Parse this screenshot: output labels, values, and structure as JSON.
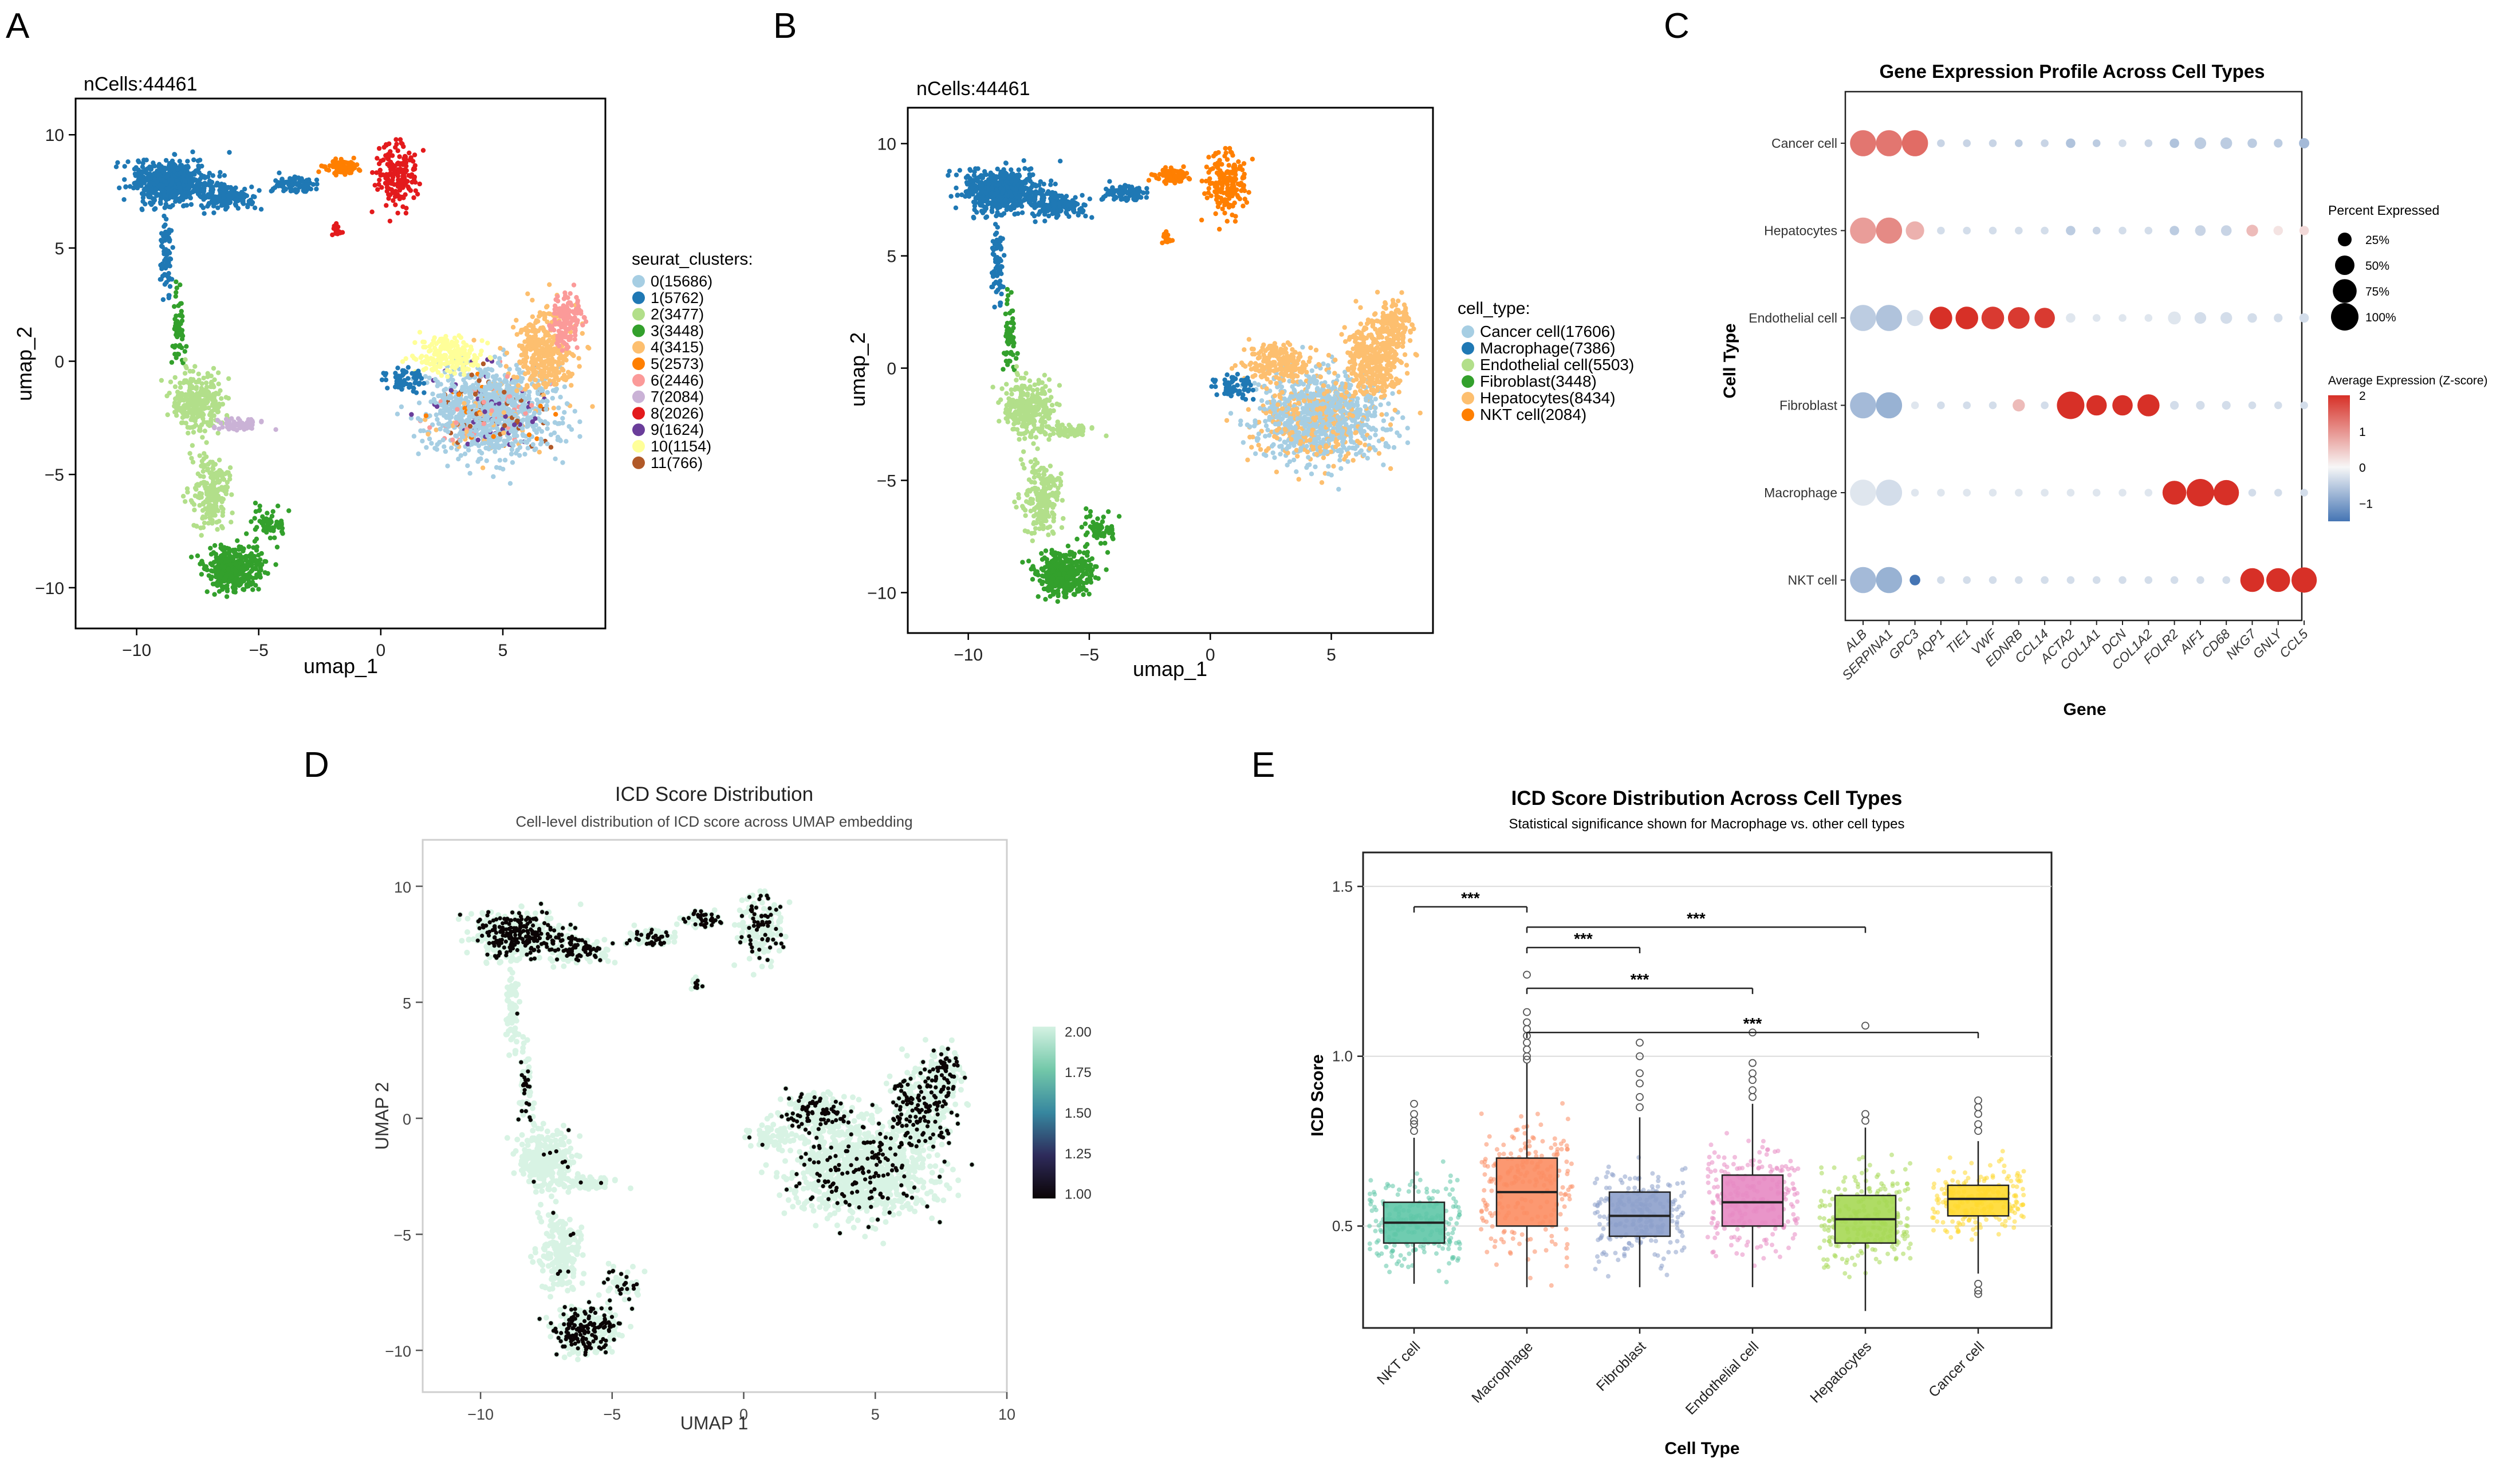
{
  "panels": {
    "A": "A",
    "B": "B",
    "C": "C",
    "D": "D",
    "E": "E"
  },
  "colors": {
    "clusters": [
      "#a6cee3",
      "#1f78b4",
      "#b2df8a",
      "#33a02c",
      "#fdbf6f",
      "#ff7f00",
      "#fb9a99",
      "#cab2d6",
      "#e31a1c",
      "#6a3d9a",
      "#ffff99",
      "#b15928"
    ],
    "cell_types": [
      "#a6cee3",
      "#1f78b4",
      "#b2df8a",
      "#33a02c",
      "#fdbf6f",
      "#ff7f00"
    ],
    "box_fill": [
      "#5fc7a7",
      "#fc8d62",
      "#8da0cb",
      "#e78ac3",
      "#a6d854",
      "#ffd92f"
    ],
    "dot_high": "#d73027",
    "dot_mid": "#f7f7f7",
    "dot_low": "#4575b4",
    "icd_scale": [
      "#d5f2e3",
      "#73c8a9",
      "#37879f",
      "#2e2b5b",
      "#0b0405"
    ]
  },
  "chart_data": [
    {
      "id": "A",
      "type": "scatter",
      "title": "nCells:44461",
      "xlabel": "umap_1",
      "ylabel": "umap_2",
      "xlim": [
        -12.5,
        9.2
      ],
      "ylim": [
        -11.8,
        11.6
      ],
      "xticks": [
        -10,
        -5,
        0,
        5
      ],
      "yticks": [
        -10,
        -5,
        0,
        5,
        10
      ],
      "legend_title": "seurat_clusters:",
      "legend": [
        "0(15686)",
        "1(5762)",
        "2(3477)",
        "3(3448)",
        "4(3415)",
        "5(2573)",
        "6(2446)",
        "7(2084)",
        "8(2026)",
        "9(1624)",
        "10(1154)",
        "11(766)"
      ]
    },
    {
      "id": "B",
      "type": "scatter",
      "title": "nCells:44461",
      "xlabel": "umap_1",
      "ylabel": "umap_2",
      "xlim": [
        -12.5,
        9.2
      ],
      "ylim": [
        -11.8,
        11.6
      ],
      "xticks": [
        -10,
        -5,
        0,
        5
      ],
      "yticks": [
        -10,
        -5,
        0,
        5,
        10
      ],
      "legend_title": "cell_type:",
      "legend": [
        "Cancer cell(17606)",
        "Macrophage(7386)",
        "Endothelial cell(5503)",
        "Fibroblast(3448)",
        "Hepatocytes(8434)",
        "NKT cell(2084)"
      ]
    },
    {
      "id": "C",
      "type": "dotplot",
      "title": "Gene Expression Profile Across Cell Types",
      "xlabel": "Gene",
      "ylabel": "Cell Type",
      "genes": [
        "ALB",
        "SERPINA1",
        "GPC3",
        "AQP1",
        "TIE1",
        "VWF",
        "EDNRB",
        "CCL14",
        "ACTA2",
        "COL1A1",
        "DCN",
        "COL1A2",
        "FOLR2",
        "AIF1",
        "CD68",
        "NKG7",
        "GNLY",
        "CCL5"
      ],
      "cell_types": [
        "Cancer cell",
        "Hepatocytes",
        "Endothelial cell",
        "Fibroblast",
        "Macrophage",
        "NKT cell"
      ],
      "pct": [
        [
          90,
          90,
          90,
          8,
          8,
          8,
          8,
          8,
          12,
          8,
          8,
          8,
          12,
          18,
          18,
          12,
          10,
          14
        ],
        [
          90,
          90,
          45,
          8,
          8,
          8,
          8,
          8,
          12,
          8,
          8,
          8,
          12,
          15,
          15,
          18,
          12,
          12
        ],
        [
          90,
          90,
          35,
          68,
          68,
          68,
          62,
          55,
          12,
          8,
          8,
          8,
          22,
          18,
          18,
          12,
          10,
          12
        ],
        [
          90,
          90,
          8,
          8,
          8,
          8,
          20,
          8,
          100,
          55,
          55,
          65,
          10,
          10,
          10,
          8,
          8,
          8
        ],
        [
          90,
          90,
          8,
          8,
          8,
          8,
          8,
          8,
          8,
          8,
          8,
          8,
          75,
          100,
          85,
          8,
          8,
          8
        ],
        [
          90,
          90,
          15,
          8,
          8,
          8,
          8,
          8,
          8,
          8,
          8,
          8,
          8,
          8,
          8,
          75,
          75,
          85
        ]
      ],
      "expr": [
        [
          1.3,
          1.3,
          1.4,
          -0.4,
          -0.4,
          -0.4,
          -0.5,
          -0.4,
          -0.6,
          -0.5,
          -0.3,
          -0.4,
          -0.6,
          -0.5,
          -0.5,
          -0.5,
          -0.5,
          -0.7
        ],
        [
          0.9,
          1.1,
          0.7,
          -0.3,
          -0.3,
          -0.3,
          -0.3,
          -0.3,
          -0.5,
          -0.4,
          -0.3,
          -0.3,
          -0.5,
          -0.4,
          -0.4,
          0.6,
          0.2,
          0.3
        ],
        [
          -0.5,
          -0.6,
          -0.3,
          2.0,
          2.0,
          1.9,
          1.9,
          1.9,
          -0.2,
          -0.2,
          -0.2,
          -0.2,
          -0.2,
          -0.3,
          -0.3,
          -0.3,
          -0.3,
          -0.3
        ],
        [
          -0.7,
          -0.8,
          -0.2,
          -0.3,
          -0.3,
          -0.3,
          0.6,
          -0.3,
          2.0,
          2.0,
          2.0,
          2.0,
          -0.3,
          -0.3,
          -0.3,
          -0.3,
          -0.3,
          -0.3
        ],
        [
          -0.2,
          -0.3,
          -0.2,
          -0.2,
          -0.2,
          -0.2,
          -0.2,
          -0.2,
          -0.2,
          -0.2,
          -0.2,
          -0.2,
          2.0,
          2.0,
          2.0,
          -0.3,
          -0.3,
          -0.3
        ],
        [
          -0.7,
          -0.8,
          -1.5,
          -0.3,
          -0.3,
          -0.3,
          -0.3,
          -0.3,
          -0.3,
          -0.3,
          -0.3,
          -0.3,
          -0.3,
          -0.3,
          -0.3,
          2.0,
          2.0,
          2.0
        ]
      ],
      "size_legend_title": "Percent Expressed",
      "size_legend": [
        "25%",
        "50%",
        "75%",
        "100%"
      ],
      "size_legend_values": [
        25,
        50,
        75,
        100
      ],
      "color_legend_title": "Average Expression (Z-score)",
      "color_ticks": [
        "2",
        "1",
        "0",
        "−1"
      ],
      "color_tick_values": [
        2,
        1,
        0,
        -1
      ],
      "color_range": [
        -1.5,
        2.0
      ]
    },
    {
      "id": "D",
      "type": "scatter",
      "title": "ICD Score Distribution",
      "subtitle": "Cell-level distribution of ICD score across UMAP embedding",
      "xlabel": "UMAP 1",
      "ylabel": "UMAP 2",
      "xlim": [
        -12.2,
        10.0
      ],
      "ylim": [
        -11.8,
        12.0
      ],
      "xticks": [
        -10,
        -5,
        0,
        5,
        10
      ],
      "yticks": [
        -10,
        -5,
        0,
        5,
        10
      ],
      "colorbar_ticks": [
        "2.00",
        "1.75",
        "1.50",
        "1.25",
        "1.00"
      ],
      "colorbar_values": [
        2.0,
        1.75,
        1.5,
        1.25,
        1.0
      ],
      "colorbar_range": [
        0.97,
        2.03
      ]
    },
    {
      "id": "E",
      "type": "box",
      "title": "ICD Score Distribution Across Cell Types",
      "subtitle": "Statistical significance shown for Macrophage vs. other cell types",
      "xlabel": "Cell Type",
      "ylabel": "ICD Score",
      "ylim": [
        0.2,
        1.6
      ],
      "yticks": [
        "0.5",
        "1.0",
        "1.5"
      ],
      "ytick_values": [
        0.5,
        1.0,
        1.5
      ],
      "categories": [
        "NKT cell",
        "Macrophage",
        "Fibroblast",
        "Endothelial cell",
        "Hepatocytes",
        "Cancer cell"
      ],
      "boxes": [
        {
          "whisker_low": 0.33,
          "q1": 0.45,
          "median": 0.51,
          "q3": 0.57,
          "whisker_high": 0.76,
          "outliers": [
            0.8,
            0.83,
            0.86,
            0.78,
            0.81
          ]
        },
        {
          "whisker_low": 0.32,
          "q1": 0.5,
          "median": 0.6,
          "q3": 0.7,
          "whisker_high": 0.98,
          "outliers": [
            1.24,
            1.13,
            1.1,
            1.08,
            1.06,
            1.04,
            1.02,
            1.0,
            0.99
          ]
        },
        {
          "whisker_low": 0.32,
          "q1": 0.47,
          "median": 0.53,
          "q3": 0.6,
          "whisker_high": 0.82,
          "outliers": [
            1.04,
            1.0,
            0.95,
            0.92,
            0.88,
            0.85
          ]
        },
        {
          "whisker_low": 0.32,
          "q1": 0.5,
          "median": 0.57,
          "q3": 0.65,
          "whisker_high": 0.86,
          "outliers": [
            1.07,
            0.98,
            0.95,
            0.93,
            0.9,
            0.88
          ]
        },
        {
          "whisker_low": 0.25,
          "q1": 0.45,
          "median": 0.52,
          "q3": 0.59,
          "whisker_high": 0.79,
          "outliers": [
            1.09,
            0.83,
            0.81
          ]
        },
        {
          "whisker_low": 0.36,
          "q1": 0.53,
          "median": 0.58,
          "q3": 0.62,
          "whisker_high": 0.75,
          "outliers": [
            0.87,
            0.85,
            0.83,
            0.8,
            0.78,
            0.33,
            0.31,
            0.3
          ]
        }
      ],
      "comparisons": [
        {
          "from": 0,
          "to": 1,
          "label": "***",
          "y": 1.44
        },
        {
          "from": 1,
          "to": 4,
          "label": "***",
          "y": 1.38
        },
        {
          "from": 1,
          "to": 2,
          "label": "***",
          "y": 1.32
        },
        {
          "from": 1,
          "to": 3,
          "label": "***",
          "y": 1.2
        },
        {
          "from": 1,
          "to": 5,
          "label": "***",
          "y": 1.07
        }
      ]
    }
  ]
}
